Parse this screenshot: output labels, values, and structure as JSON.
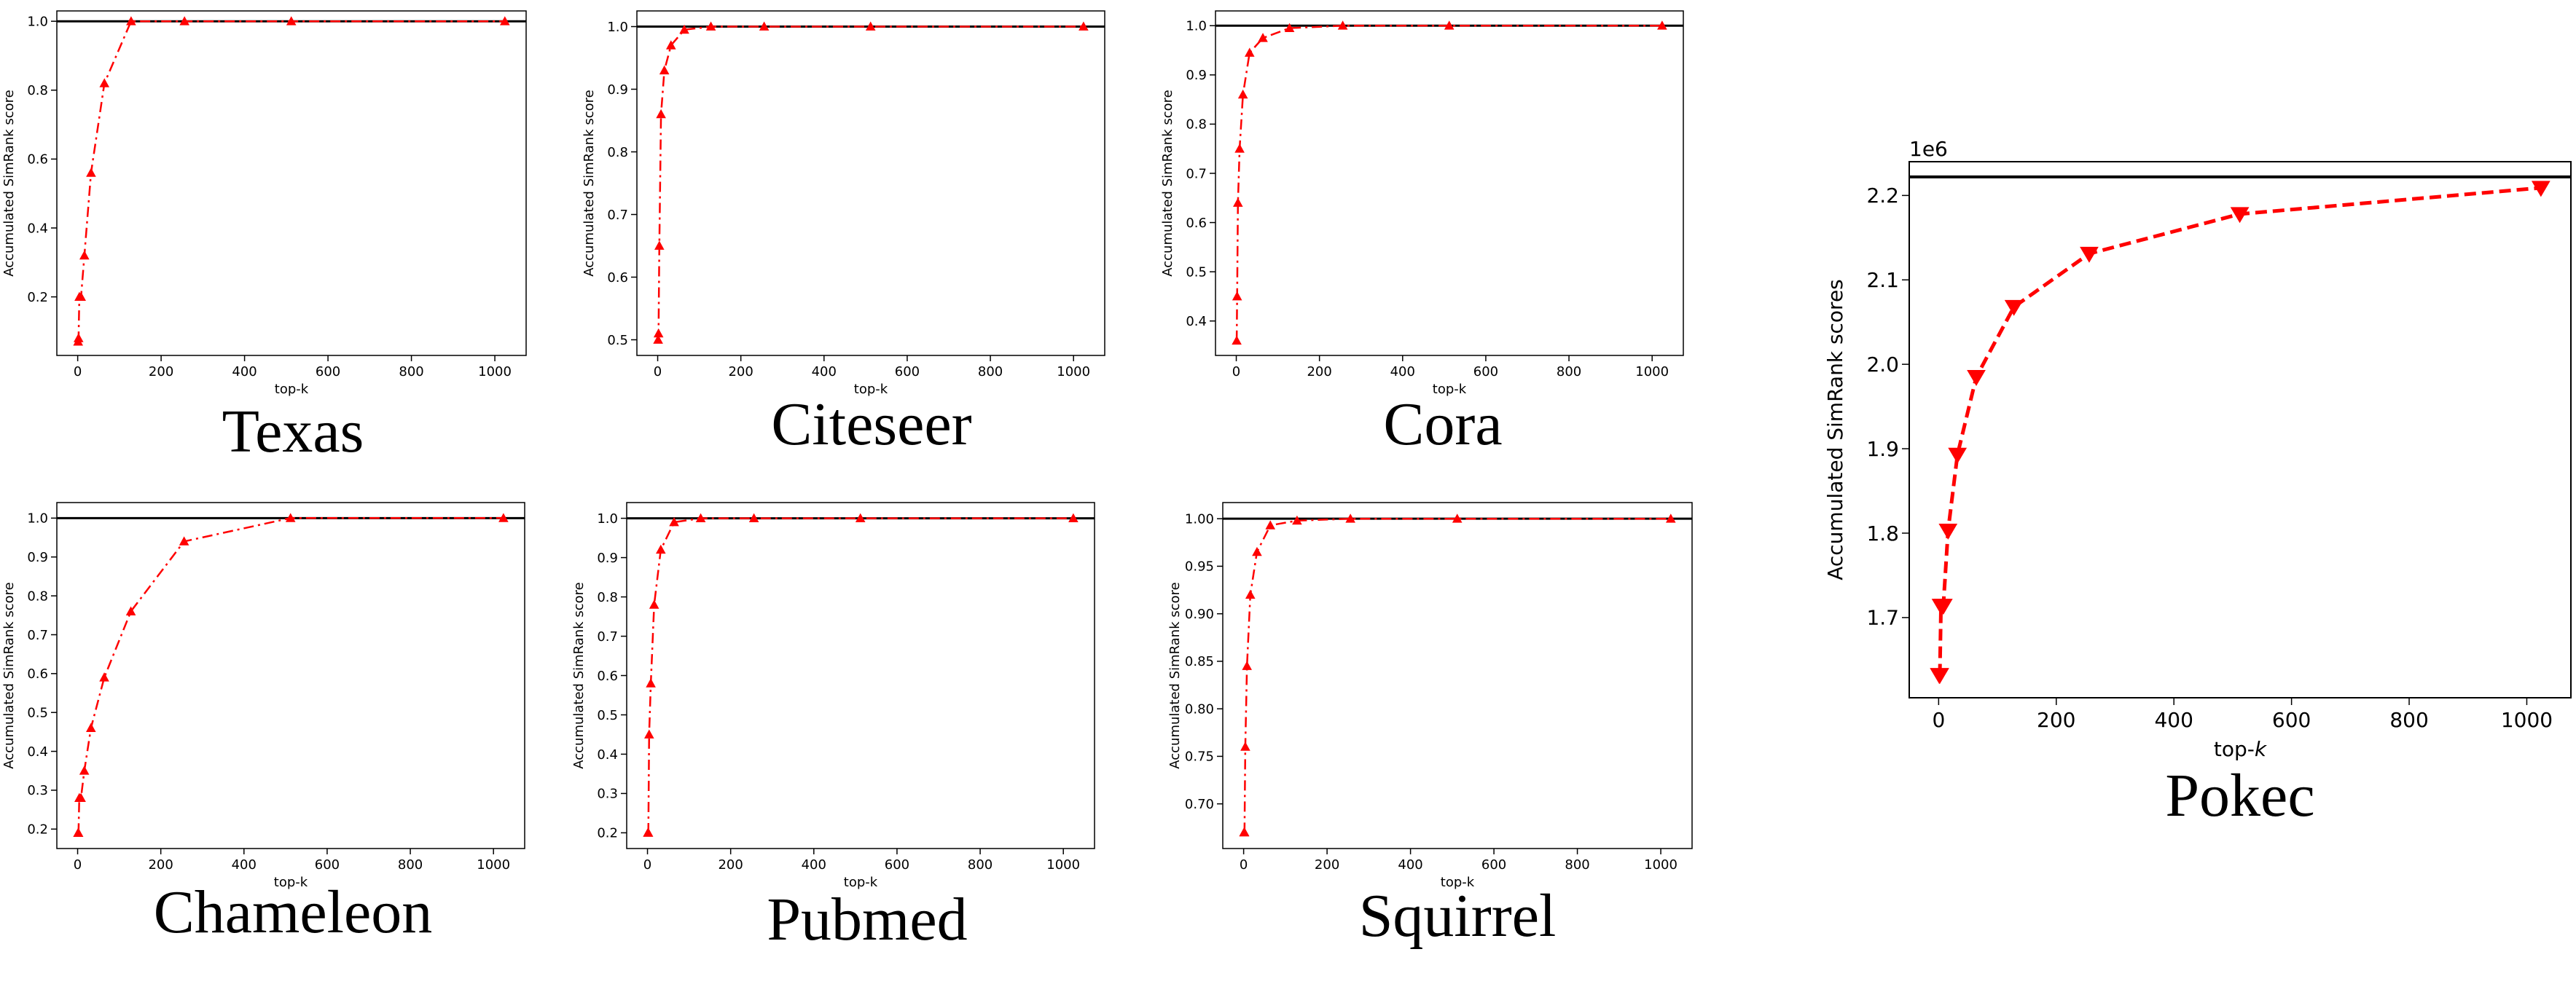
{
  "chart_data": [
    {
      "type": "line",
      "title": "Texas",
      "xlabel": "top-k",
      "ylabel": "Accumulated SimRank score",
      "x": [
        1,
        2,
        4,
        8,
        16,
        32,
        64,
        128,
        256,
        512,
        1024
      ],
      "series": [
        {
          "values": [
            0.07,
            0.08,
            0.2,
            0.2,
            0.32,
            0.56,
            0.82,
            1.0,
            1.0,
            1.0,
            1.0
          ]
        }
      ],
      "reference_line": 1.0,
      "xlim": [
        -50,
        1075
      ],
      "ylim": [
        0.03,
        1.03
      ],
      "xticks": [
        "0",
        "200",
        "400",
        "600",
        "800",
        "1000"
      ],
      "yticks": [
        "0.2",
        "0.4",
        "0.6",
        "0.8",
        "1.0"
      ],
      "marker": "triangle-up",
      "line_style": "dash-dot",
      "color": "#ff0000",
      "grid": false
    },
    {
      "type": "line",
      "title": "Citeseer",
      "xlabel": "top-k",
      "ylabel": "Accumulated SimRank score",
      "x": [
        1,
        2,
        4,
        8,
        16,
        32,
        64,
        128,
        256,
        512,
        1024
      ],
      "series": [
        {
          "values": [
            0.5,
            0.51,
            0.65,
            0.86,
            0.93,
            0.97,
            0.995,
            1.0,
            1.0,
            1.0,
            1.0
          ]
        }
      ],
      "reference_line": 1.0,
      "xlim": [
        -50,
        1075
      ],
      "ylim": [
        0.475,
        1.025
      ],
      "xticks": [
        "0",
        "200",
        "400",
        "600",
        "800",
        "1000"
      ],
      "yticks": [
        "0.5",
        "0.6",
        "0.7",
        "0.8",
        "0.9",
        "1.0"
      ],
      "marker": "triangle-up",
      "line_style": "dash-dot",
      "color": "#ff0000",
      "grid": false
    },
    {
      "type": "line",
      "title": "Cora",
      "xlabel": "top-k",
      "ylabel": "Accumulated SimRank score",
      "x": [
        1,
        2,
        4,
        8,
        16,
        32,
        64,
        128,
        256,
        512,
        1024
      ],
      "series": [
        {
          "values": [
            0.36,
            0.45,
            0.64,
            0.75,
            0.86,
            0.945,
            0.975,
            0.995,
            1.0,
            1.0,
            1.0
          ]
        }
      ],
      "reference_line": 1.0,
      "xlim": [
        -50,
        1075
      ],
      "ylim": [
        0.33,
        1.03
      ],
      "xticks": [
        "0",
        "200",
        "400",
        "600",
        "800",
        "1000"
      ],
      "yticks": [
        "0.4",
        "0.5",
        "0.6",
        "0.7",
        "0.8",
        "0.9",
        "1.0"
      ],
      "marker": "triangle-up",
      "line_style": "dash-dot",
      "color": "#ff0000",
      "grid": false
    },
    {
      "type": "line",
      "title": "Chameleon",
      "xlabel": "top-k",
      "ylabel": "Accumulated SimRank score",
      "x": [
        1,
        2,
        4,
        8,
        16,
        32,
        64,
        128,
        256,
        512,
        1024
      ],
      "series": [
        {
          "values": [
            0.19,
            0.19,
            0.28,
            0.28,
            0.35,
            0.46,
            0.59,
            0.76,
            0.94,
            1.0,
            1.0
          ]
        }
      ],
      "reference_line": 1.0,
      "xlim": [
        -50,
        1075
      ],
      "ylim": [
        0.15,
        1.04
      ],
      "xticks": [
        "0",
        "200",
        "400",
        "600",
        "800",
        "1000"
      ],
      "yticks": [
        "0.2",
        "0.3",
        "0.4",
        "0.5",
        "0.6",
        "0.7",
        "0.8",
        "0.9",
        "1.0"
      ],
      "marker": "triangle-up",
      "line_style": "dash-dot",
      "color": "#ff0000",
      "grid": false
    },
    {
      "type": "line",
      "title": "Pubmed",
      "xlabel": "top-k",
      "ylabel": "Accumulated SimRank score",
      "x": [
        1,
        2,
        4,
        8,
        16,
        32,
        64,
        128,
        256,
        512,
        1024
      ],
      "series": [
        {
          "values": [
            0.2,
            0.2,
            0.45,
            0.58,
            0.78,
            0.92,
            0.99,
            1.0,
            1.0,
            1.0,
            1.0
          ]
        }
      ],
      "reference_line": 1.0,
      "xlim": [
        -50,
        1075
      ],
      "ylim": [
        0.16,
        1.04
      ],
      "xticks": [
        "0",
        "200",
        "400",
        "600",
        "800",
        "1000"
      ],
      "yticks": [
        "0.2",
        "0.3",
        "0.4",
        "0.5",
        "0.6",
        "0.7",
        "0.8",
        "0.9",
        "1.0"
      ],
      "marker": "triangle-up",
      "line_style": "dash-dot",
      "color": "#ff0000",
      "grid": false
    },
    {
      "type": "line",
      "title": "Squirrel",
      "xlabel": "top-k",
      "ylabel": "Accumulated SimRank score",
      "x": [
        1,
        2,
        4,
        8,
        16,
        32,
        64,
        128,
        256,
        512,
        1024
      ],
      "series": [
        {
          "values": [
            0.67,
            0.67,
            0.76,
            0.845,
            0.92,
            0.965,
            0.993,
            0.998,
            1.0,
            1.0,
            1.0
          ]
        }
      ],
      "reference_line": 1.0,
      "xlim": [
        -50,
        1075
      ],
      "ylim": [
        0.653,
        1.017
      ],
      "xticks": [
        "0",
        "200",
        "400",
        "600",
        "800",
        "1000"
      ],
      "yticks": [
        "0.70",
        "0.75",
        "0.80",
        "0.85",
        "0.90",
        "0.95",
        "1.00"
      ],
      "marker": "triangle-up",
      "line_style": "dash-dot",
      "color": "#ff0000",
      "grid": false
    },
    {
      "type": "line",
      "title": "Pokec",
      "xlabel": "top-k",
      "ylabel": "Accumulated SimRank scores",
      "y_offset_label": "1e6",
      "x": [
        1,
        2,
        4,
        8,
        16,
        32,
        64,
        128,
        256,
        512,
        1024
      ],
      "series": [
        {
          "values": [
            1.632,
            1.632,
            1.714,
            1.714,
            1.803,
            1.893,
            1.985,
            2.068,
            2.131,
            2.178,
            2.209
          ]
        }
      ],
      "reference_line": 2.222,
      "xlim": [
        -50,
        1075
      ],
      "ylim": [
        1.605,
        2.24
      ],
      "xticks": [
        "0",
        "200",
        "400",
        "600",
        "800",
        "1000"
      ],
      "yticks": [
        "1.7",
        "1.8",
        "1.9",
        "2.0",
        "2.1",
        "2.2"
      ],
      "marker": "triangle-down",
      "line_style": "dashed",
      "color": "#ff0000",
      "grid": false
    }
  ]
}
